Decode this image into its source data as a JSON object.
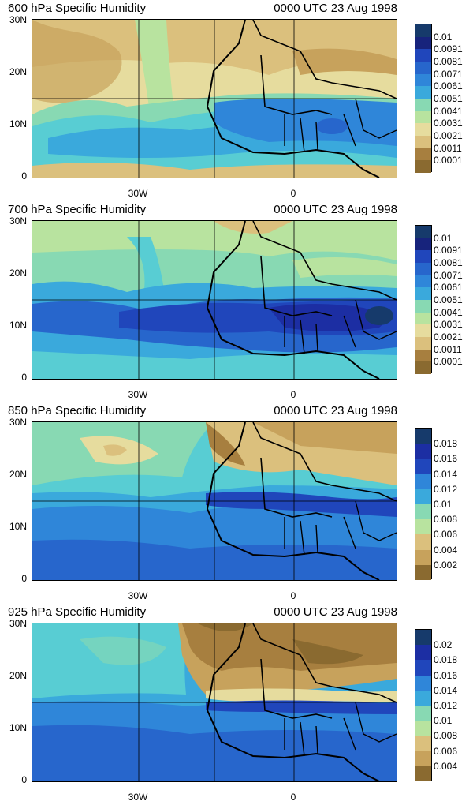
{
  "palette": [
    "#8a6a30",
    "#a77f3f",
    "#c7a25c",
    "#dbc07d",
    "#e6dc9e",
    "#b8e39f",
    "#88d9b3",
    "#58cdd3",
    "#3aa9dc",
    "#2f86d9",
    "#2766cc",
    "#2046bb",
    "#1c2ea3",
    "#17237c",
    "#163a6b"
  ],
  "panels": [
    {
      "title": "600 hPa Specific Humidity",
      "time": "0000 UTC 23 Aug 1998",
      "y_labels": [
        "30N",
        "20N",
        "10N",
        "0"
      ],
      "x_labels": [
        "30W",
        "0"
      ],
      "colorbar_labels": [
        "0.01",
        "0.0091",
        "0.0081",
        "0.0071",
        "0.0061",
        "0.0051",
        "0.0041",
        "0.0031",
        "0.0021",
        "0.0011",
        "0.0001"
      ]
    },
    {
      "title": "700 hPa Specific Humidity",
      "time": "0000 UTC 23 Aug 1998",
      "y_labels": [
        "30N",
        "20N",
        "10N",
        "0"
      ],
      "x_labels": [
        "30W",
        "0"
      ],
      "colorbar_labels": [
        "0.01",
        "0.0091",
        "0.0081",
        "0.0071",
        "0.0061",
        "0.0051",
        "0.0041",
        "0.0031",
        "0.0021",
        "0.0011",
        "0.0001"
      ]
    },
    {
      "title": "850 hPa Specific Humidity",
      "time": "0000 UTC 23 Aug 1998",
      "y_labels": [
        "30N",
        "20N",
        "10N",
        "0"
      ],
      "x_labels": [
        "30W",
        "0"
      ],
      "colorbar_labels": [
        "0.018",
        "0.016",
        "0.014",
        "0.012",
        "0.01",
        "0.008",
        "0.006",
        "0.004",
        "0.002"
      ]
    },
    {
      "title": "925 hPa Specific Humidity",
      "time": "0000 UTC 23 Aug 1998",
      "y_labels": [
        "30N",
        "20N",
        "10N",
        "0"
      ],
      "x_labels": [
        "30W",
        "0"
      ],
      "colorbar_labels": [
        "0.02",
        "0.018",
        "0.016",
        "0.014",
        "0.012",
        "0.01",
        "0.008",
        "0.006",
        "0.004"
      ]
    }
  ]
}
